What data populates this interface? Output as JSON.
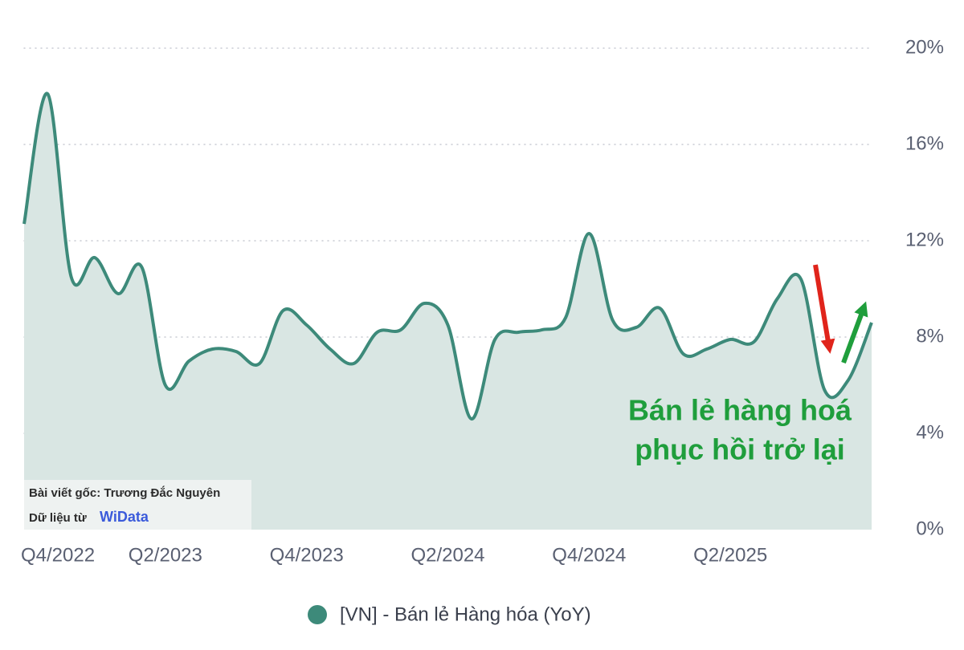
{
  "chart_data": {
    "type": "line",
    "categories": [
      "Q4/2022",
      null,
      null,
      null,
      null,
      null,
      "Q2/2023",
      null,
      null,
      null,
      null,
      null,
      "Q4/2023",
      null,
      null,
      null,
      null,
      null,
      "Q2/2024",
      null,
      null,
      null,
      null,
      null,
      "Q4/2024",
      null,
      null,
      null,
      null,
      null,
      "Q2/2025",
      null,
      null,
      null,
      null,
      null,
      null
    ],
    "series": [
      {
        "name": "[VN] - Bán lẻ Hàng hóa (YoY)",
        "color": "#3d8a7a",
        "values": [
          12.7,
          18.1,
          10.5,
          11.3,
          9.8,
          10.9,
          6.0,
          7.0,
          7.5,
          7.4,
          6.9,
          9.1,
          8.5,
          7.5,
          6.9,
          8.2,
          8.3,
          9.4,
          8.5,
          4.6,
          7.9,
          8.2,
          8.3,
          8.8,
          12.3,
          8.7,
          8.4,
          9.2,
          7.3,
          7.5,
          7.9,
          7.8,
          9.6,
          10.4,
          5.8,
          6.2,
          8.6
        ]
      }
    ],
    "area_color": "#d9e6e3",
    "ylim": [
      0,
      20.4
    ],
    "yticks": [
      {
        "value": 0,
        "label": "0%"
      },
      {
        "value": 4,
        "label": "4%"
      },
      {
        "value": 8,
        "label": "8%"
      },
      {
        "value": 12,
        "label": "12%"
      },
      {
        "value": 16,
        "label": "16%"
      },
      {
        "value": 20,
        "label": "20%"
      }
    ],
    "grid": true,
    "annotation": [
      "Bán lẻ hàng hoá",
      "phục hồi trở lại"
    ],
    "source": {
      "author": "Bài viết gốc: Trương Đắc Nguyên",
      "data_prefix": "Dữ liệu từ",
      "logo": "WiData"
    }
  }
}
